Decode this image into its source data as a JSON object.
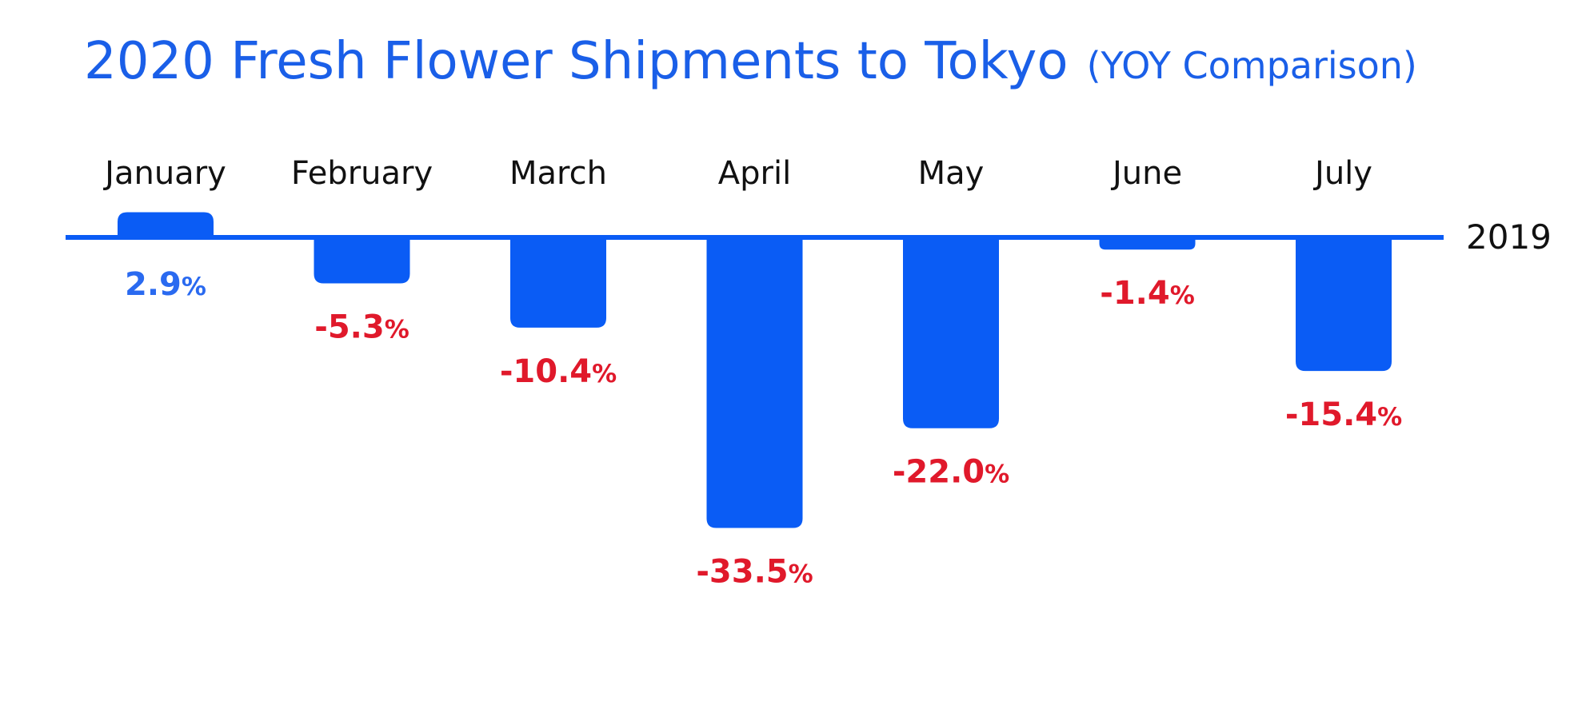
{
  "chart_data": {
    "type": "bar",
    "title": "2020 Fresh Flower Shipments to Tokyo",
    "subtitle": "(YOY Comparison)",
    "baseline_label": "2019",
    "unit": "%",
    "categories": [
      "January",
      "February",
      "March",
      "April",
      "May",
      "June",
      "July"
    ],
    "values": [
      2.9,
      -5.3,
      -10.4,
      -33.5,
      -22.0,
      -1.4,
      -15.4
    ],
    "value_labels": [
      "2.9",
      "-5.3",
      "-10.4",
      "-33.5",
      "-22.0",
      "-1.4",
      "-15.4"
    ],
    "colors": {
      "bar": "#0a5cf5",
      "title": "#1a5fe8",
      "positive_label": "#2a6af0",
      "negative_label": "#e0192b",
      "axis_text": "#111111"
    }
  }
}
